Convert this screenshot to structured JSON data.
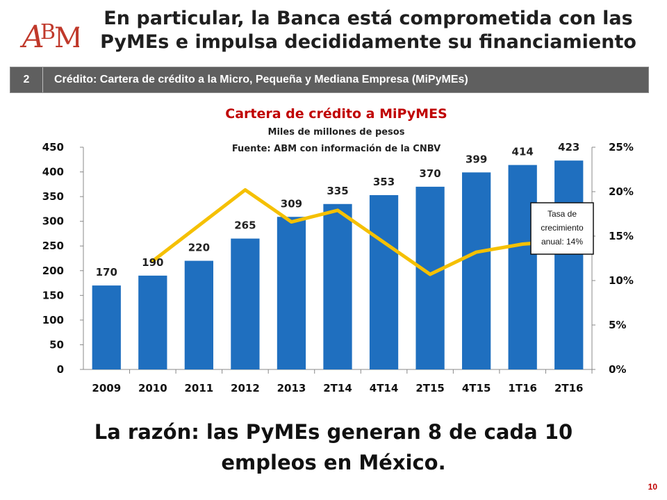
{
  "slide": {
    "title": "En particular, la Banca está comprometida con las PyMEs e impulsa decididamente su financiamiento",
    "banner_number": "2",
    "banner_text": "Crédito: Cartera de crédito a la Micro, Pequeña y Mediana Empresa (MiPyMEs)",
    "bottom_text": "La razón: las PyMEs generan 8 de cada 10 empleos en México.",
    "page_number": "10",
    "logo_text": "ABM",
    "colors": {
      "logo": "#c0392b",
      "banner_bg": "#5f5f5f",
      "page_number": "#c00000"
    }
  },
  "chart_data": {
    "type": "bar",
    "title": "Cartera de crédito a MiPyMES",
    "subtitle": "Miles de millones de pesos",
    "source": "Fuente: ABM con información de la CNBV",
    "categories": [
      "2009",
      "2010",
      "2011",
      "2012",
      "2013",
      "2T14",
      "4T14",
      "2T15",
      "4T15",
      "1T16",
      "2T16"
    ],
    "series": [
      {
        "type": "bar",
        "axis": "left",
        "color": "#1f6fbf",
        "values": [
          170,
          190,
          220,
          265,
          309,
          335,
          353,
          370,
          399,
          414,
          423
        ]
      },
      {
        "name": "Tasa de crecimiento anual: 14%",
        "type": "line",
        "axis": "right",
        "color": "#f5c000",
        "values": [
          null,
          0.122,
          null,
          0.202,
          0.166,
          0.179,
          null,
          0.107,
          0.132,
          0.141,
          0.145
        ]
      }
    ],
    "yaxis_left": {
      "min": 0,
      "max": 450,
      "ticks": [
        "0",
        "50",
        "100",
        "150",
        "200",
        "250",
        "300",
        "350",
        "400",
        "450"
      ]
    },
    "yaxis_right": {
      "min": 0,
      "max": 0.25,
      "ticks": [
        "0%",
        "5%",
        "10%",
        "15%",
        "20%",
        "25%"
      ]
    },
    "grid": false,
    "title_color": "#c00000",
    "annotation": {
      "text_line1": "Tasa de",
      "text_line2": "crecimiento",
      "text_line3": "anual: 14%"
    }
  }
}
